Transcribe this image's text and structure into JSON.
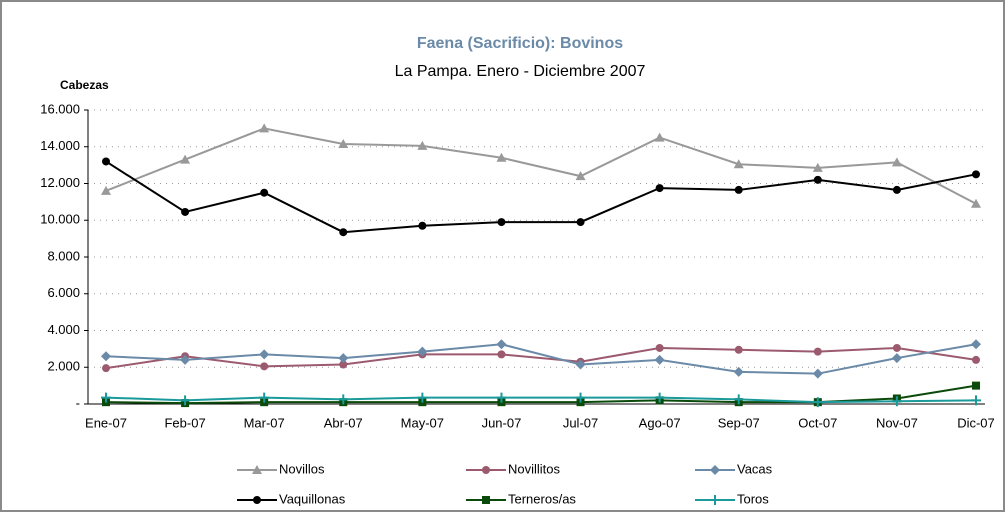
{
  "chart_data": {
    "type": "line",
    "title": "Faena (Sacrificio):  Bovinos",
    "subtitle": "La Pampa. Enero - Diciembre 2007",
    "y_label": "Cabezas",
    "categories": [
      "Ene-07",
      "Feb-07",
      "Mar-07",
      "Abr-07",
      "May-07",
      "Jun-07",
      "Jul-07",
      "Ago-07",
      "Sep-07",
      "Oct-07",
      "Nov-07",
      "Dic-07"
    ],
    "series": [
      {
        "name": "Novillos",
        "color": "#999999",
        "marker": "triangle",
        "values": [
          11600,
          13300,
          15000,
          14150,
          14050,
          13400,
          12400,
          14500,
          13050,
          12850,
          13150,
          10900
        ]
      },
      {
        "name": "Novillitos",
        "color": "#9c5a6e",
        "marker": "circle",
        "values": [
          1950,
          2600,
          2050,
          2150,
          2700,
          2700,
          2300,
          3050,
          2950,
          2850,
          3050,
          2400
        ]
      },
      {
        "name": "Vacas",
        "color": "#6a8aa8",
        "marker": "diamond",
        "values": [
          2600,
          2400,
          2700,
          2500,
          2850,
          3250,
          2150,
          2400,
          1750,
          1650,
          2500,
          3250
        ]
      },
      {
        "name": "Vaquillonas",
        "color": "#000000",
        "marker": "circle",
        "values": [
          13200,
          10450,
          11500,
          9350,
          9700,
          9900,
          9900,
          11750,
          11650,
          12200,
          11650,
          12500
        ]
      },
      {
        "name": "Terneros/as",
        "color": "#0a4a0a",
        "marker": "square",
        "values": [
          100,
          50,
          100,
          100,
          100,
          100,
          100,
          200,
          100,
          100,
          300,
          1000
        ]
      },
      {
        "name": "Toros",
        "color": "#1a9a9a",
        "marker": "plus",
        "values": [
          350,
          200,
          350,
          250,
          350,
          350,
          350,
          350,
          250,
          100,
          150,
          200
        ]
      }
    ],
    "ylim": [
      0,
      16000
    ],
    "yticks": [
      {
        "value": 0,
        "label": "-"
      },
      {
        "value": 2000,
        "label": "2.000"
      },
      {
        "value": 4000,
        "label": "4.000"
      },
      {
        "value": 6000,
        "label": "6.000"
      },
      {
        "value": 8000,
        "label": "8.000"
      },
      {
        "value": 10000,
        "label": "10.000"
      },
      {
        "value": 12000,
        "label": "12.000"
      },
      {
        "value": 14000,
        "label": "14.000"
      },
      {
        "value": 16000,
        "label": "16.000"
      }
    ],
    "grid": true,
    "legend": "bottom"
  }
}
